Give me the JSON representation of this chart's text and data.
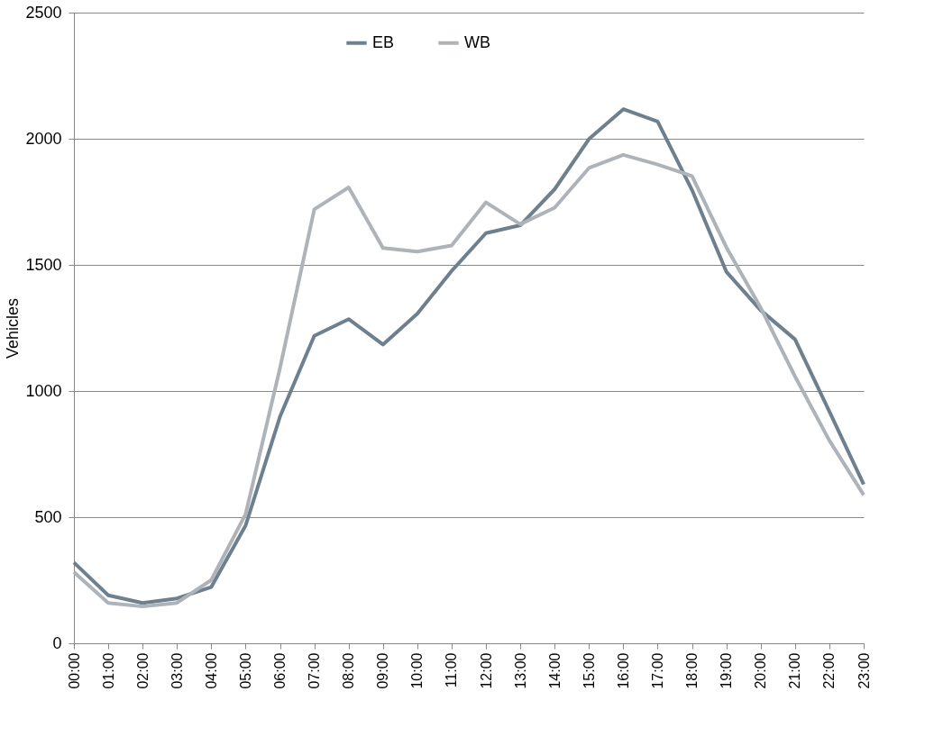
{
  "chart_data": {
    "type": "line",
    "ylabel": "Vehicles",
    "categories": [
      "00:00",
      "01:00",
      "02:00",
      "03:00",
      "04:00",
      "05:00",
      "06:00",
      "07:00",
      "08:00",
      "09:00",
      "10:00",
      "11:00",
      "12:00",
      "13:00",
      "14:00",
      "15:00",
      "16:00",
      "17:00",
      "18:00",
      "19:00",
      "20:00",
      "21:00",
      "22:00",
      "23:00"
    ],
    "series": [
      {
        "name": "EB",
        "color": "#6e7f8d",
        "values": [
          320,
          190,
          160,
          178,
          223,
          467,
          898,
          1219,
          1285,
          1184,
          1306,
          1476,
          1626,
          1657,
          1800,
          1999,
          2117,
          2068,
          1797,
          1473,
          1320,
          1205,
          919,
          630
        ]
      },
      {
        "name": "WB",
        "color": "#adb3b9",
        "values": [
          282,
          160,
          146,
          160,
          251,
          512,
          1090,
          1720,
          1807,
          1567,
          1553,
          1577,
          1748,
          1661,
          1727,
          1884,
          1936,
          1898,
          1852,
          1570,
          1330,
          1058,
          804,
          588
        ]
      }
    ],
    "ylim": [
      0,
      2500
    ],
    "yticks": [
      0,
      500,
      1000,
      1500,
      2000,
      2500
    ],
    "grid": "y",
    "legend": "top",
    "marker": "none",
    "line_style": "solid"
  }
}
